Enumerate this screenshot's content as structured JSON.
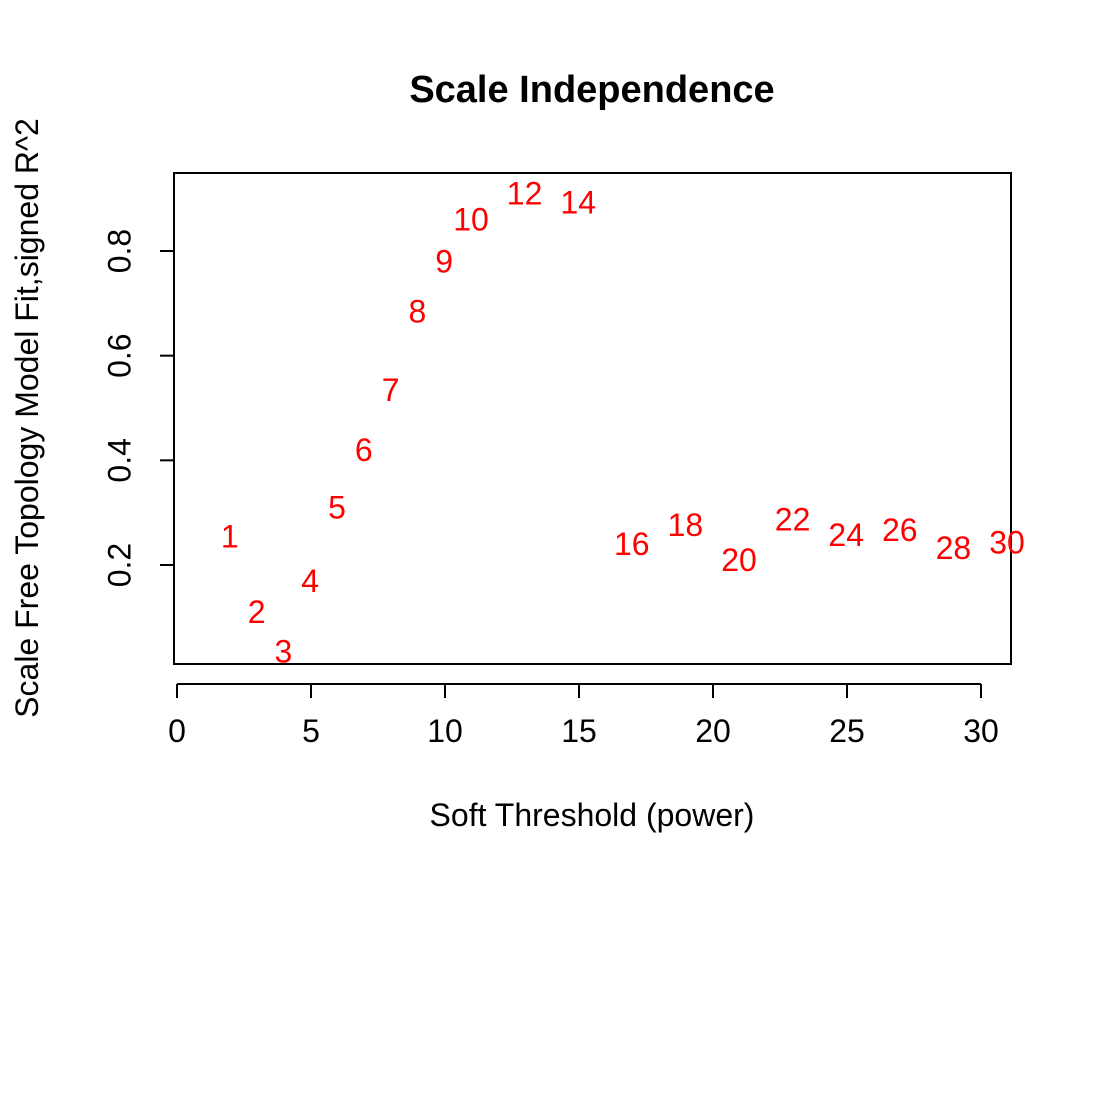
{
  "chart_data": {
    "type": "scatter",
    "title": "Scale Independence",
    "xlabel": "Soft Threshold (power)",
    "ylabel": "Scale Free Topology Model Fit,signed R^2",
    "xlim": [
      0,
      30
    ],
    "ylim": [
      0.02,
      0.96
    ],
    "xticks": [
      0,
      5,
      10,
      15,
      20,
      25,
      30
    ],
    "yticks": [
      0.2,
      0.4,
      0.6,
      0.8
    ],
    "xtick_labels": [
      "0",
      "5",
      "10",
      "15",
      "20",
      "25",
      "30"
    ],
    "ytick_labels": [
      "0.2",
      "0.4",
      "0.6",
      "0.8"
    ],
    "grid": false,
    "box": true,
    "point_color": "#ff0000",
    "points": [
      {
        "x": 1,
        "y": 0.25,
        "label": "1"
      },
      {
        "x": 2,
        "y": 0.105,
        "label": "2"
      },
      {
        "x": 3,
        "y": 0.03,
        "label": "3"
      },
      {
        "x": 4,
        "y": 0.165,
        "label": "4"
      },
      {
        "x": 5,
        "y": 0.305,
        "label": "5"
      },
      {
        "x": 6,
        "y": 0.415,
        "label": "6"
      },
      {
        "x": 7,
        "y": 0.53,
        "label": "7"
      },
      {
        "x": 8,
        "y": 0.68,
        "label": "8"
      },
      {
        "x": 9,
        "y": 0.775,
        "label": "9"
      },
      {
        "x": 10,
        "y": 0.855,
        "label": "10"
      },
      {
        "x": 12,
        "y": 0.905,
        "label": "12"
      },
      {
        "x": 14,
        "y": 0.888,
        "label": "14"
      },
      {
        "x": 16,
        "y": 0.235,
        "label": "16"
      },
      {
        "x": 18,
        "y": 0.272,
        "label": "18"
      },
      {
        "x": 20,
        "y": 0.205,
        "label": "20"
      },
      {
        "x": 22,
        "y": 0.282,
        "label": "22"
      },
      {
        "x": 24,
        "y": 0.252,
        "label": "24"
      },
      {
        "x": 26,
        "y": 0.262,
        "label": "26"
      },
      {
        "x": 28,
        "y": 0.228,
        "label": "28"
      },
      {
        "x": 30,
        "y": 0.238,
        "label": "30"
      }
    ]
  }
}
